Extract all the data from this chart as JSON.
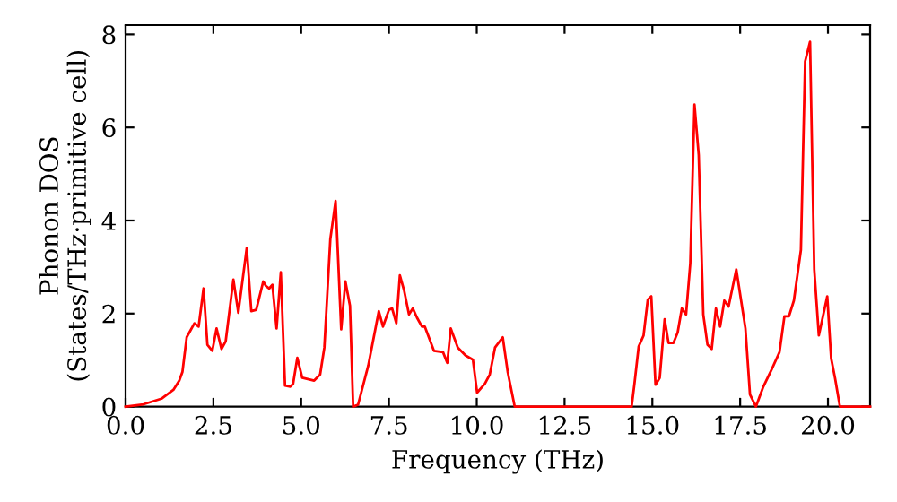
{
  "chart_data": {
    "type": "line",
    "xlabel": "Frequency (THz)",
    "ylabel": "Phonon DOS\n(States/THz·primitive cell)",
    "xlim": [
      0,
      21.2
    ],
    "ylim": [
      0,
      8.2
    ],
    "xticks": [
      {
        "value": 0,
        "label": "0.0"
      },
      {
        "value": 2.5,
        "label": "2.5"
      },
      {
        "value": 5,
        "label": "5.0"
      },
      {
        "value": 7.5,
        "label": "7.5"
      },
      {
        "value": 10,
        "label": "10.0"
      },
      {
        "value": 12.5,
        "label": "12.5"
      },
      {
        "value": 15,
        "label": "15.0"
      },
      {
        "value": 17.5,
        "label": "17.5"
      },
      {
        "value": 20,
        "label": "20.0"
      }
    ],
    "yticks": [
      0,
      2,
      4,
      6,
      8
    ],
    "grid": false,
    "legend": false,
    "marker": "none",
    "line_style": "solid",
    "series": [
      {
        "color": "#ff0000",
        "x": [
          0,
          0.51,
          1.02,
          1.36,
          1.53,
          1.62,
          1.74,
          1.96,
          2.08,
          2.22,
          2.33,
          2.47,
          2.59,
          2.73,
          2.85,
          3.07,
          3.21,
          3.45,
          3.58,
          3.72,
          3.92,
          4.0,
          4.09,
          4.18,
          4.3,
          4.42,
          4.54,
          4.69,
          4.77,
          4.89,
          5.03,
          5.37,
          5.54,
          5.66,
          5.83,
          5.98,
          6.14,
          6.26,
          6.39,
          6.48,
          6.62,
          6.91,
          7.21,
          7.33,
          7.5,
          7.59,
          7.71,
          7.81,
          7.93,
          8.07,
          8.18,
          8.3,
          8.44,
          8.52,
          8.78,
          9.04,
          9.16,
          9.26,
          9.46,
          9.68,
          9.89,
          10.01,
          10.23,
          10.37,
          10.52,
          10.74,
          10.88,
          11.08,
          14.41,
          14.49,
          14.61,
          14.75,
          14.87,
          14.97,
          15.09,
          15.21,
          15.35,
          15.46,
          15.6,
          15.72,
          15.84,
          15.96,
          16.08,
          16.2,
          16.32,
          16.45,
          16.57,
          16.69,
          16.81,
          16.93,
          17.05,
          17.17,
          17.39,
          17.65,
          17.78,
          17.95,
          18.16,
          18.41,
          18.62,
          18.76,
          18.89,
          19.03,
          19.23,
          19.35,
          19.49,
          19.61,
          19.74,
          19.98,
          20.09,
          20.2,
          20.34,
          21.2
        ],
        "values": [
          0,
          0.05,
          0.17,
          0.36,
          0.56,
          0.75,
          1.49,
          1.79,
          1.72,
          2.54,
          1.33,
          1.2,
          1.68,
          1.24,
          1.4,
          2.73,
          2.02,
          3.41,
          2.05,
          2.08,
          2.69,
          2.59,
          2.54,
          2.62,
          1.68,
          2.89,
          0.45,
          0.43,
          0.49,
          1.05,
          0.62,
          0.56,
          0.69,
          1.27,
          3.6,
          4.42,
          1.66,
          2.69,
          2.17,
          0,
          0.04,
          0.88,
          2.05,
          1.72,
          2.08,
          2.11,
          1.79,
          2.82,
          2.5,
          1.98,
          2.11,
          1.91,
          1.72,
          1.72,
          1.2,
          1.17,
          0.94,
          1.68,
          1.27,
          1.1,
          1.01,
          0.3,
          0.49,
          0.69,
          1.27,
          1.49,
          0.75,
          0,
          0,
          0.49,
          1.29,
          1.53,
          2.3,
          2.37,
          0.47,
          0.62,
          1.88,
          1.37,
          1.37,
          1.59,
          2.11,
          1.98,
          3.08,
          6.49,
          5.41,
          1.98,
          1.33,
          1.24,
          2.11,
          1.72,
          2.28,
          2.15,
          2.95,
          1.68,
          0.26,
          0,
          0.43,
          0.82,
          1.17,
          1.94,
          1.94,
          2.28,
          3.37,
          7.42,
          7.84,
          2.95,
          1.53,
          2.37,
          1.04,
          0.62,
          0,
          0
        ]
      }
    ]
  }
}
